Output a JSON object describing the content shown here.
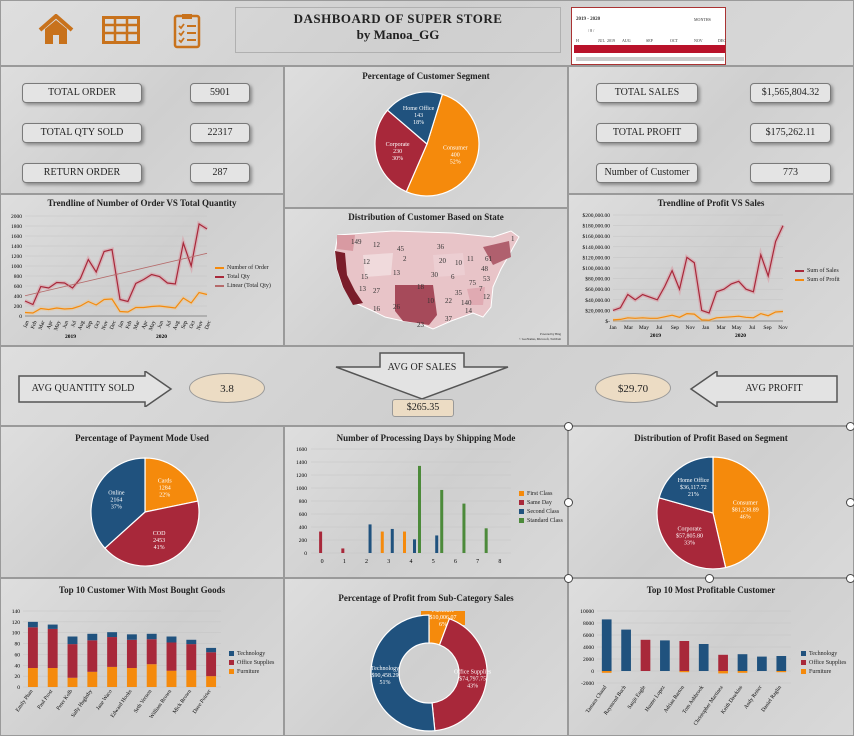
{
  "header": {
    "title_line1": "DASHBOARD  OF SUPER  STORE",
    "title_line2": "by Manoa_GG",
    "home_icon": "home-icon",
    "table_icon": "table-icon",
    "checklist_icon": "checklist-icon"
  },
  "timeline": {
    "range": "2019 - 2020",
    "label": "MONTHS",
    "sub_label": "/ 8 /",
    "year_label": "2019",
    "months": [
      "JUL",
      "AUG",
      "SEP",
      "OCT",
      "NOV",
      "DEC"
    ],
    "start_marker": "H"
  },
  "kpi_left": [
    {
      "label": "TOTAL ORDER",
      "value": "5901"
    },
    {
      "label": "TOTAL QTY SOLD",
      "value": "22317"
    },
    {
      "label": "RETURN ORDER",
      "value": "287"
    }
  ],
  "kpi_right": [
    {
      "label": "TOTAL SALES",
      "value": "$1,565,804.32"
    },
    {
      "label": "TOTAL PROFIT",
      "value": "$175,262.11"
    },
    {
      "label": "Number of Customer",
      "value": "773"
    }
  ],
  "customer_segment": {
    "title": "Percentage of Customer Segment",
    "slices": [
      {
        "name": "Consumer",
        "value": 400,
        "pct": "52%",
        "color": "#f58a0c"
      },
      {
        "name": "Corporate",
        "value": 230,
        "pct": "30%",
        "color": "#a8283a"
      },
      {
        "name": "Home Office",
        "value": 143,
        "pct": "18%",
        "color": "#20527e"
      }
    ]
  },
  "order_trend": {
    "title": "Trendline of Number of Order VS Total Quantity",
    "y_ticks": [
      "2000",
      "1800",
      "1600",
      "1400",
      "1200",
      "1000",
      "800",
      "600",
      "400",
      "200",
      "0"
    ],
    "months": [
      "Jan",
      "Feb",
      "Mar",
      "Apr",
      "May",
      "Jun",
      "Jul",
      "Aug",
      "Sep",
      "Oct",
      "Nov",
      "Dec",
      "Jan",
      "Feb",
      "Mar",
      "Apr",
      "May",
      "Jun",
      "Jul",
      "Aug",
      "Sep",
      "Oct",
      "Nov",
      "Dec"
    ],
    "years": [
      "2019",
      "2020"
    ],
    "legend": [
      "Number of Order",
      "Total Qty",
      "Linear (Total Qty)"
    ],
    "orders": [
      70,
      60,
      150,
      130,
      160,
      140,
      150,
      200,
      290,
      220,
      330,
      340,
      90,
      80,
      170,
      170,
      190,
      200,
      180,
      160,
      360,
      260,
      470,
      430
    ],
    "qty": [
      300,
      230,
      590,
      560,
      670,
      660,
      560,
      750,
      1130,
      880,
      1290,
      1330,
      330,
      290,
      650,
      730,
      830,
      790,
      660,
      640,
      1460,
      1000,
      1840,
      1740
    ]
  },
  "state_map": {
    "title": "Distribution of Customer Based on State",
    "footer": "Powered by Bing",
    "copyright": "© GeoNames, Microsoft, TomTom",
    "labels": [
      "149",
      "12",
      "45",
      "1",
      "12",
      "2",
      "36",
      "61",
      "15",
      "13",
      "20",
      "10",
      "11",
      "48",
      "13",
      "27",
      "18",
      "30",
      "6",
      "75",
      "7",
      "53",
      "16",
      "26",
      "10",
      "22",
      "140",
      "12",
      "23",
      "37",
      "14",
      "35"
    ]
  },
  "profit_trend": {
    "title": "Trendline of Profit VS Sales",
    "y_ticks": [
      "$200,000.00",
      "$180,000.00",
      "$160,000.00",
      "$140,000.00",
      "$120,000.00",
      "$100,000.00",
      "$80,000.00",
      "$60,000.00",
      "$40,000.00",
      "$20,000.00",
      "$-"
    ],
    "months": [
      "Jan",
      "Mar",
      "May",
      "Jul",
      "Sep",
      "Nov",
      "Jan",
      "Mar",
      "May",
      "Jul",
      "Sep",
      "Nov"
    ],
    "years": [
      "2019",
      "2020"
    ],
    "legend": [
      "Sum of Sales",
      "Sum of Profit"
    ],
    "sales": [
      20000,
      25000,
      50000,
      40000,
      50000,
      45000,
      40000,
      65000,
      95000,
      60000,
      120000,
      110000,
      20000,
      15000,
      55000,
      60000,
      70000,
      75000,
      60000,
      55000,
      125000,
      85000,
      150000,
      180000
    ],
    "profit": [
      2000,
      3000,
      6000,
      5000,
      6000,
      5000,
      5000,
      8000,
      11000,
      7000,
      14000,
      13000,
      2000,
      1500,
      6000,
      7000,
      8000,
      9000,
      7000,
      6000,
      14000,
      10000,
      17000,
      18000
    ]
  },
  "avg": {
    "qty_label": "AVG QUANTITY SOLD",
    "qty_value": "3.8",
    "sales_label": "AVG OF SALES",
    "sales_value": "$265.35",
    "profit_label": "AVG PROFIT",
    "profit_value": "$29.70"
  },
  "payment_mode": {
    "title": "Percentage of Payment Mode Used",
    "slices": [
      {
        "name": "Cards",
        "value": 1284,
        "pct": "22%",
        "color": "#f58a0c"
      },
      {
        "name": "COD",
        "value": 2453,
        "pct": "41%",
        "color": "#a8283a"
      },
      {
        "name": "Online",
        "value": 2164,
        "pct": "37%",
        "color": "#20527e"
      }
    ]
  },
  "shipping": {
    "title": "Number of Processing Days by Shipping Mode",
    "y_ticks": [
      "1600",
      "1400",
      "1200",
      "1000",
      "800",
      "600",
      "400",
      "200",
      "0"
    ],
    "x_ticks": [
      "0",
      "1",
      "2",
      "3",
      "4",
      "5",
      "6",
      "7",
      "8"
    ],
    "legend": [
      "First Class",
      "Same Day",
      "Second Class",
      "Standard Class"
    ],
    "colors": [
      "#f58a0c",
      "#a8283a",
      "#20527e",
      "#4c8a3a"
    ],
    "series": [
      [
        0,
        0,
        0,
        330,
        330,
        0,
        0,
        0,
        0
      ],
      [
        330,
        70,
        0,
        0,
        0,
        0,
        0,
        0,
        0
      ],
      [
        0,
        0,
        440,
        370,
        210,
        270,
        0,
        0,
        0
      ],
      [
        0,
        0,
        0,
        0,
        1340,
        970,
        760,
        380,
        0
      ]
    ]
  },
  "profit_segment": {
    "title": "Distribution of Profit Based on Segment",
    "slices": [
      {
        "name": "Consumer",
        "value": "$81,238.89",
        "pct": "46%",
        "color": "#f58a0c"
      },
      {
        "name": "Corporate",
        "value": "$57,805.80",
        "pct": "33%",
        "color": "#a8283a"
      },
      {
        "name": "Home Office",
        "value": "$36,117.72",
        "pct": "21%",
        "color": "#20527e"
      }
    ]
  },
  "top_customers_goods": {
    "title": "Top 10 Customer With Most Bought Goods",
    "y_ticks": [
      "140",
      "120",
      "100",
      "80",
      "60",
      "40",
      "20",
      "0"
    ],
    "legend": [
      "Technology",
      "Office Supplies",
      "Furniture"
    ],
    "colors": [
      "#20527e",
      "#a8283a",
      "#f58a0c"
    ],
    "names": [
      "Emily Phan",
      "Paul Prost",
      "Peter Kolb",
      "Sally Hughsby",
      "Jane Waco",
      "Edward Hooks",
      "Seth Vernon",
      "William Brown",
      "Mick Brown",
      "Dave Poirier"
    ],
    "tech": [
      10,
      8,
      14,
      12,
      9,
      10,
      10,
      11,
      8,
      8
    ],
    "office": [
      75,
      72,
      62,
      58,
      55,
      52,
      46,
      52,
      48,
      44
    ],
    "furniture": [
      35,
      35,
      17,
      28,
      37,
      35,
      42,
      30,
      31,
      20
    ]
  },
  "subcategory_profit": {
    "title": "Percentage of Profit from Sub-Category Sales",
    "slices": [
      {
        "name": "Furniture",
        "value": "$10,006.07",
        "pct": "6%",
        "color": "#f58a0c"
      },
      {
        "name": "Office Supplies",
        "value": "$74,797.75",
        "pct": "43%",
        "color": "#a8283a"
      },
      {
        "name": "Technology",
        "value": "$90,458.29",
        "pct": "51%",
        "color": "#20527e"
      }
    ]
  },
  "top_profitable": {
    "title": "Top 10 Most Profitable Customer",
    "y_ticks": [
      "10000",
      "8000",
      "6000",
      "4000",
      "2000",
      "0",
      "-2000"
    ],
    "legend": [
      "Technology",
      "Office Supplies",
      "Furniture"
    ],
    "colors": [
      "#20527e",
      "#a8283a",
      "#f58a0c"
    ],
    "names": [
      "Tamara Chand",
      "Raymond Buch",
      "Sanjit Engle",
      "Hunter Lopez",
      "Adrian Barton",
      "Tom Ashbrook",
      "Christopher Martinez",
      "Keith Dawkins",
      "Andy Reiter",
      "Daniel Raglin"
    ],
    "tech": [
      8600,
      6900,
      0,
      5100,
      0,
      4500,
      0,
      2800,
      2400,
      2500
    ],
    "office": [
      0,
      0,
      5200,
      0,
      5000,
      0,
      2700,
      0,
      0,
      0
    ],
    "furniture": [
      -300,
      0,
      0,
      0,
      -200,
      0,
      -400,
      -300,
      0,
      -200
    ]
  }
}
